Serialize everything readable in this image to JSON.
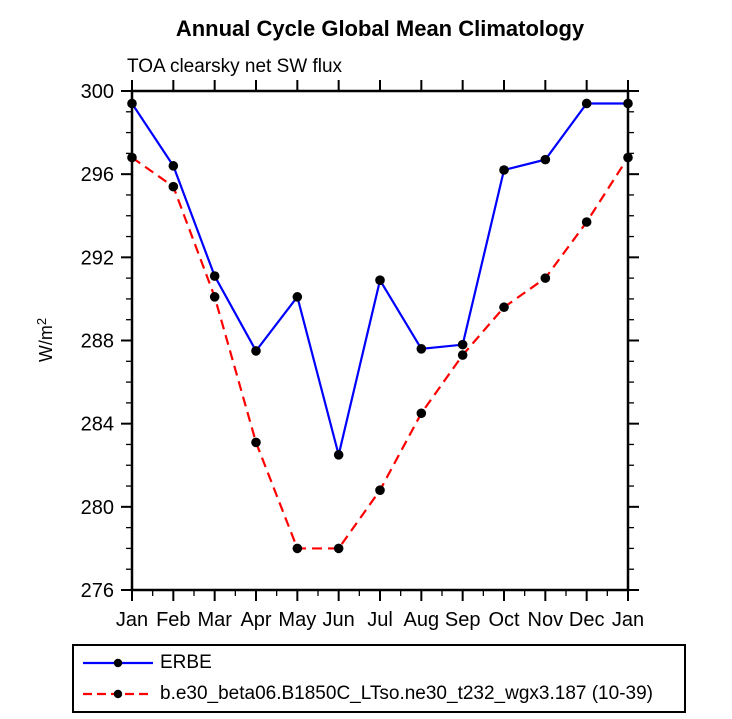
{
  "chart_data": {
    "type": "line",
    "title": "Annual Cycle Global Mean Climatology",
    "subtitle": "TOA clearsky net SW flux",
    "ylabel": "W/m²",
    "ylabel_base": "W/m",
    "ylabel_sup": "2",
    "x_categories": [
      "Jan",
      "Feb",
      "Mar",
      "Apr",
      "May",
      "Jun",
      "Jul",
      "Aug",
      "Sep",
      "Oct",
      "Nov",
      "Dec",
      "Jan"
    ],
    "ylim": [
      276,
      300
    ],
    "y_major_step": 4,
    "y_minor_step": 1,
    "grid": false,
    "legend_position": "bottom",
    "axis_color": "#000000",
    "marker_color": "#000000",
    "series": [
      {
        "name": "ERBE",
        "color": "#0000ff",
        "style": "solid",
        "marker": "circle",
        "values": [
          299.4,
          296.4,
          291.1,
          287.5,
          290.1,
          282.5,
          290.9,
          287.6,
          287.8,
          296.2,
          296.7,
          299.4,
          299.4
        ]
      },
      {
        "name": "b.e30_beta06.B1850C_LTso.ne30_t232_wgx3.187 (10-39)",
        "color": "#ff0000",
        "style": "dashed",
        "marker": "circle",
        "values": [
          296.8,
          295.4,
          290.1,
          283.1,
          278.0,
          278.0,
          280.8,
          284.5,
          287.3,
          289.6,
          291.0,
          293.7,
          296.8
        ]
      }
    ]
  }
}
